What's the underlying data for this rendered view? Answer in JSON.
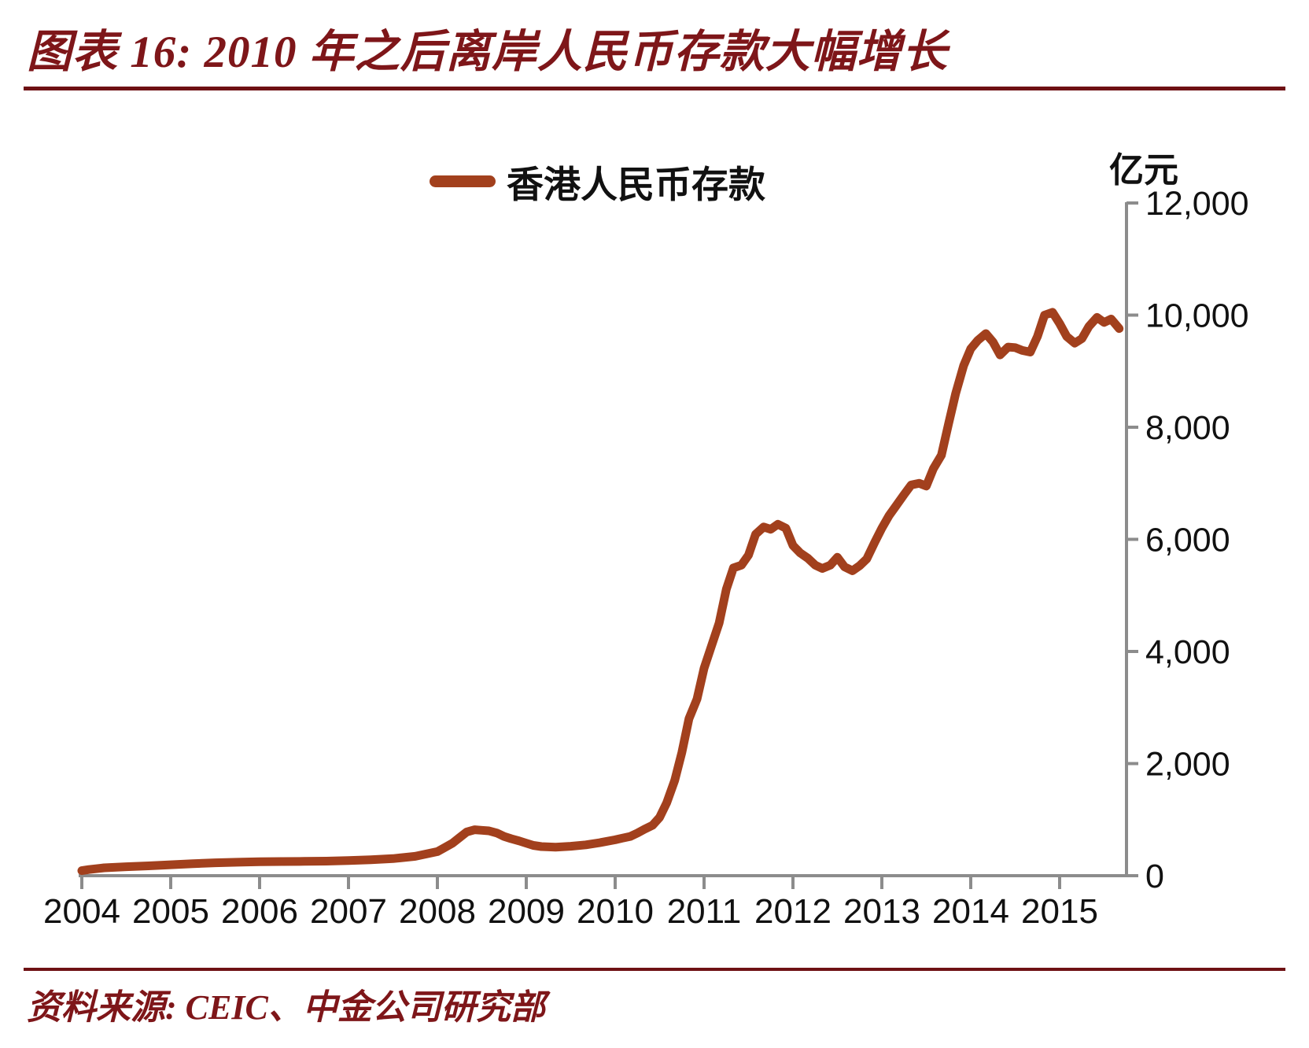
{
  "title": "图表 16: 2010 年之后离岸人民币存款大幅增长",
  "source": "资料来源: CEIC、中金公司研究部",
  "y_unit": "亿元",
  "legend": {
    "label": "香港人民币存款"
  },
  "colors": {
    "line": "#A2401D",
    "title": "#7E1619",
    "rule": "#6E1114",
    "axis": "#8C8C8C",
    "tick_text": "#111111"
  },
  "chart_data": {
    "type": "line",
    "title": "香港人民币存款",
    "xlabel": "",
    "ylabel": "亿元",
    "ylim": [
      0,
      12000
    ],
    "yticks": [
      0,
      2000,
      4000,
      6000,
      8000,
      10000,
      12000
    ],
    "ytick_labels": [
      "0",
      "2,000",
      "4,000",
      "6,000",
      "8,000",
      "10,000",
      "12,000"
    ],
    "xticks": [
      2004,
      2005,
      2006,
      2007,
      2008,
      2009,
      2010,
      2011,
      2012,
      2013,
      2014,
      2015
    ],
    "xtick_labels": [
      "2004",
      "2005",
      "2006",
      "2007",
      "2008",
      "2009",
      "2010",
      "2011",
      "2012",
      "2013",
      "2014",
      "2015"
    ],
    "grid": false,
    "legend_position": "top-center",
    "y_axis_side": "right",
    "series": [
      {
        "name": "香港人民币存款",
        "points": [
          [
            2004.0,
            90
          ],
          [
            2004.08,
            110
          ],
          [
            2004.25,
            140
          ],
          [
            2004.5,
            160
          ],
          [
            2004.75,
            175
          ],
          [
            2005.0,
            195
          ],
          [
            2005.25,
            215
          ],
          [
            2005.5,
            230
          ],
          [
            2005.75,
            240
          ],
          [
            2006.0,
            248
          ],
          [
            2006.25,
            252
          ],
          [
            2006.5,
            255
          ],
          [
            2006.75,
            260
          ],
          [
            2007.0,
            270
          ],
          [
            2007.25,
            285
          ],
          [
            2007.5,
            305
          ],
          [
            2007.75,
            345
          ],
          [
            2008.0,
            430
          ],
          [
            2008.08,
            500
          ],
          [
            2008.17,
            580
          ],
          [
            2008.25,
            680
          ],
          [
            2008.33,
            780
          ],
          [
            2008.42,
            820
          ],
          [
            2008.5,
            810
          ],
          [
            2008.58,
            800
          ],
          [
            2008.67,
            760
          ],
          [
            2008.75,
            700
          ],
          [
            2008.83,
            660
          ],
          [
            2008.92,
            620
          ],
          [
            2009.0,
            580
          ],
          [
            2009.08,
            540
          ],
          [
            2009.17,
            520
          ],
          [
            2009.33,
            510
          ],
          [
            2009.5,
            525
          ],
          [
            2009.67,
            550
          ],
          [
            2009.83,
            590
          ],
          [
            2010.0,
            640
          ],
          [
            2010.08,
            670
          ],
          [
            2010.17,
            700
          ],
          [
            2010.25,
            760
          ],
          [
            2010.33,
            830
          ],
          [
            2010.42,
            900
          ],
          [
            2010.5,
            1040
          ],
          [
            2010.58,
            1300
          ],
          [
            2010.67,
            1700
          ],
          [
            2010.75,
            2200
          ],
          [
            2010.83,
            2800
          ],
          [
            2010.92,
            3150
          ],
          [
            2011.0,
            3700
          ],
          [
            2011.08,
            4080
          ],
          [
            2011.17,
            4510
          ],
          [
            2011.25,
            5110
          ],
          [
            2011.33,
            5490
          ],
          [
            2011.42,
            5540
          ],
          [
            2011.5,
            5720
          ],
          [
            2011.58,
            6090
          ],
          [
            2011.67,
            6220
          ],
          [
            2011.75,
            6180
          ],
          [
            2011.83,
            6270
          ],
          [
            2011.92,
            6200
          ],
          [
            2012.0,
            5890
          ],
          [
            2012.08,
            5760
          ],
          [
            2012.17,
            5660
          ],
          [
            2012.25,
            5540
          ],
          [
            2012.33,
            5480
          ],
          [
            2012.42,
            5540
          ],
          [
            2012.5,
            5680
          ],
          [
            2012.58,
            5510
          ],
          [
            2012.67,
            5440
          ],
          [
            2012.75,
            5530
          ],
          [
            2012.83,
            5650
          ],
          [
            2012.92,
            5950
          ],
          [
            2013.0,
            6200
          ],
          [
            2013.08,
            6420
          ],
          [
            2013.17,
            6620
          ],
          [
            2013.25,
            6800
          ],
          [
            2013.33,
            6970
          ],
          [
            2013.42,
            7000
          ],
          [
            2013.5,
            6950
          ],
          [
            2013.58,
            7260
          ],
          [
            2013.67,
            7500
          ],
          [
            2013.75,
            8060
          ],
          [
            2013.83,
            8600
          ],
          [
            2013.92,
            9100
          ],
          [
            2014.0,
            9400
          ],
          [
            2014.08,
            9550
          ],
          [
            2014.17,
            9670
          ],
          [
            2014.25,
            9520
          ],
          [
            2014.33,
            9290
          ],
          [
            2014.42,
            9430
          ],
          [
            2014.5,
            9420
          ],
          [
            2014.58,
            9370
          ],
          [
            2014.67,
            9340
          ],
          [
            2014.75,
            9620
          ],
          [
            2014.83,
            10000
          ],
          [
            2014.92,
            10050
          ],
          [
            2015.0,
            9850
          ],
          [
            2015.08,
            9620
          ],
          [
            2015.17,
            9500
          ],
          [
            2015.25,
            9580
          ],
          [
            2015.33,
            9800
          ],
          [
            2015.42,
            9960
          ],
          [
            2015.5,
            9870
          ],
          [
            2015.58,
            9930
          ],
          [
            2015.67,
            9760
          ]
        ]
      }
    ]
  }
}
